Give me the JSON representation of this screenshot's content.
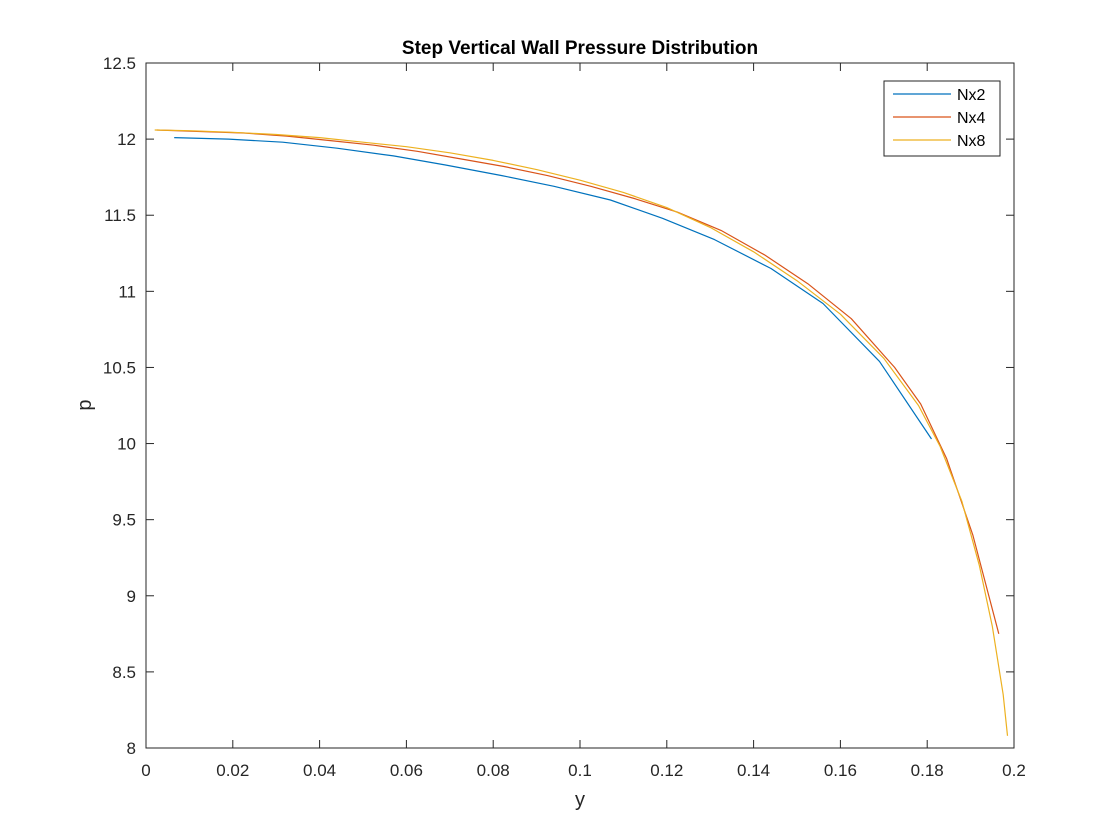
{
  "chart_data": {
    "type": "line",
    "title": "Step Vertical Wall Pressure Distribution",
    "xlabel": "y",
    "ylabel": "p",
    "xlim": [
      0,
      0.2
    ],
    "ylim": [
      8,
      12.5
    ],
    "xticks": [
      0,
      0.02,
      0.04,
      0.06,
      0.08,
      0.1,
      0.12,
      0.14,
      0.16,
      0.18,
      0.2
    ],
    "xtick_labels": [
      "0",
      "0.02",
      "0.04",
      "0.06",
      "0.08",
      "0.1",
      "0.12",
      "0.14",
      "0.16",
      "0.18",
      "0.2"
    ],
    "yticks": [
      8,
      8.5,
      9,
      9.5,
      10,
      10.5,
      11,
      11.5,
      12,
      12.5
    ],
    "ytick_labels": [
      "8",
      "8.5",
      "9",
      "9.5",
      "10",
      "10.5",
      "11",
      "11.5",
      "12",
      "12.5"
    ],
    "grid": false,
    "legend_position": "top-right",
    "series": [
      {
        "name": "Nx2",
        "color": "#0072BD",
        "x": [
          0.0065,
          0.019,
          0.0315,
          0.044,
          0.057,
          0.069,
          0.082,
          0.094,
          0.107,
          0.119,
          0.131,
          0.144,
          0.156,
          0.169,
          0.181
        ],
        "y": [
          12.01,
          12.0,
          11.98,
          11.94,
          11.89,
          11.83,
          11.76,
          11.69,
          11.6,
          11.48,
          11.34,
          11.15,
          10.92,
          10.54,
          10.03
        ]
      },
      {
        "name": "Nx4",
        "color": "#D95319",
        "x": [
          0.0025,
          0.0125,
          0.0225,
          0.0325,
          0.0425,
          0.0525,
          0.0625,
          0.0725,
          0.0825,
          0.0925,
          0.1025,
          0.1125,
          0.1225,
          0.1325,
          0.1425,
          0.1525,
          0.1625,
          0.1725,
          0.1785,
          0.1845,
          0.1905,
          0.1965
        ],
        "y": [
          12.06,
          12.05,
          12.04,
          12.02,
          11.99,
          11.96,
          11.92,
          11.87,
          11.82,
          11.76,
          11.69,
          11.61,
          11.52,
          11.4,
          11.24,
          11.05,
          10.82,
          10.5,
          10.26,
          9.9,
          9.4,
          8.75
        ]
      },
      {
        "name": "Nx8",
        "color": "#EDB120",
        "x": [
          0.002,
          0.01,
          0.02,
          0.03,
          0.04,
          0.05,
          0.06,
          0.07,
          0.08,
          0.09,
          0.1,
          0.11,
          0.12,
          0.13,
          0.14,
          0.15,
          0.16,
          0.17,
          0.178,
          0.183,
          0.188,
          0.192,
          0.195,
          0.1975,
          0.1985
        ],
        "y": [
          12.06,
          12.055,
          12.045,
          12.03,
          12.01,
          11.98,
          11.95,
          11.91,
          11.86,
          11.8,
          11.73,
          11.65,
          11.55,
          11.42,
          11.26,
          11.07,
          10.85,
          10.56,
          10.25,
          9.98,
          9.62,
          9.2,
          8.8,
          8.35,
          8.08
        ]
      }
    ]
  }
}
